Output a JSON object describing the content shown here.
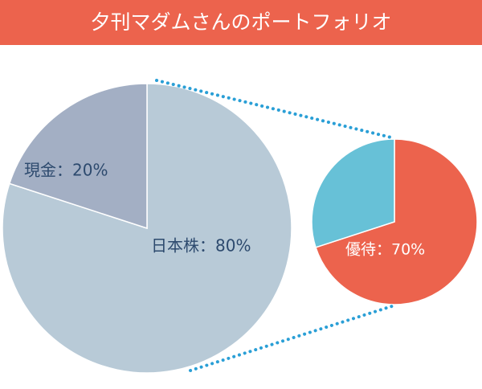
{
  "title": "夕刊マダムさんのポートフォリオ",
  "chart_data": [
    {
      "type": "pie",
      "values": [
        80,
        20
      ],
      "value_labels": [
        "日本株：80%",
        "現金：20%"
      ],
      "colors": [
        "#b8cad7",
        "#a3afc4"
      ]
    },
    {
      "type": "pie",
      "values": [
        70,
        30
      ],
      "value_labels": [
        "優待：70%",
        null
      ],
      "colors": [
        "#ec634d",
        "#67c1d7"
      ]
    }
  ]
}
